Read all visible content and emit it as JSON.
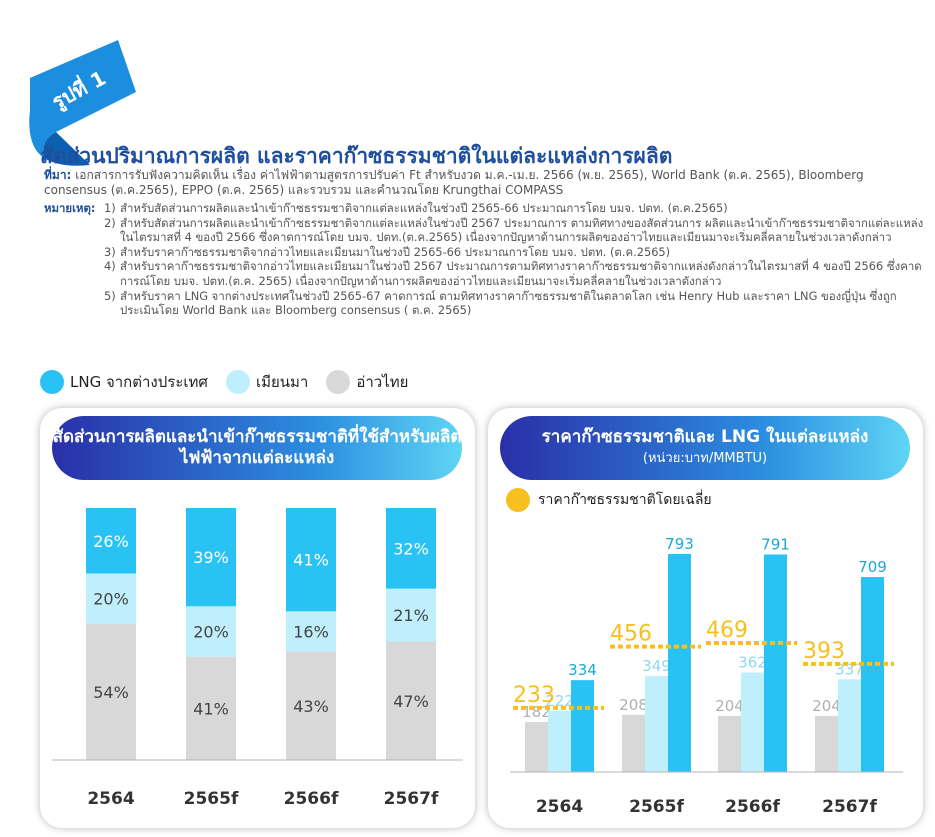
{
  "badge": {
    "label": "รูปที่ 1"
  },
  "title": "สัดส่วนปริมาณการผลิต และราคาก๊าซธรรมชาติในแต่ละแหล่งการผลิต",
  "source": {
    "label": "ที่มา:",
    "text": "เอกสารการรับฟังความคิดเห็น เรื่อง ค่าไฟฟ้าตามสูตรการปรับค่า Ft สำหรับงวด ม.ค.-เม.ย. 2566 (พ.ย. 2565), World Bank (ต.ค. 2565), Bloomberg consensus (ต.ค.2565), EPPO (ต.ค. 2565) และรวบรวม และคำนวณโดย Krungthai COMPASS"
  },
  "notes": {
    "label": "หมายเหตุ:",
    "items": [
      {
        "num": "1)",
        "text": "สำหรับสัดส่วนการผลิตและนำเข้าก๊าซธรรมชาติจากแต่ละแหล่งในช่วงปี 2565-66 ประมาณการโดย บมจ. ปตท. (ต.ค.2565)"
      },
      {
        "num": "2)",
        "text": "สำหรับสัดส่วนการผลิตและนำเข้าก๊าซธรรมชาติจากแต่ละแหล่งในช่วงปี 2567 ประมาณการ ตามทิศทางของสัดส่วนการ ผลิตและนำเข้าก๊าซธรรมชาติจากแต่ละแหล่งในไตรมาสที่ 4 ของปี 2566 ซึ่งคาดการณ์โดย บมจ. ปตท.(ต.ค.2565) เนื่องจากปัญหาด้านการผลิตของอ่าวไทยและเมียนมาจะเริ่มคลี่คลายในช่วงเวลาดังกล่าว"
      },
      {
        "num": "3)",
        "text": "สำหรับราคาก๊าซธรรมชาติจากอ่าวไทยและเมียนมาในช่วงปี 2565-66 ประมาณการโดย บมจ. ปตท. (ต.ค.2565)"
      },
      {
        "num": "4)",
        "text": "สำหรับราคาก๊าซธรรมชาติจากอ่าวไทยและเมียนมาในช่วงปี 2567 ประมาณการตามทิศทางราคาก๊าซธรรมชาติจากแหล่งดังกล่าวในไตรมาสที่ 4 ของปี 2566 ซึ่งคาดการณ์โดย บมจ. ปตท.(ต.ค. 2565) เนื่องจากปัญหาด้านการผลิตของอ่าวไทยและเมียนมาจะเริ่มคลี่คลายในช่วงเวลาดังกล่าว"
      },
      {
        "num": "5)",
        "text": "สำหรับราคา LNG จากต่างประเทศในช่วงปี 2565-67 คาดการณ์ ตามทิศทางราคาก๊าซธรรมชาติในตลาดโลก เช่น Henry Hub และราคา LNG ของญี่ปุ่น ซึ่งถูกประเมินโดย World Bank และ Bloomberg consensus ( ต.ค. 2565)"
      }
    ]
  },
  "legend": [
    {
      "label": "LNG จากต่างประเทศ",
      "color": "#29c2f4"
    },
    {
      "label": "เมียนมา",
      "color": "#bfeefc"
    },
    {
      "label": "อ่าวไทย",
      "color": "#d8d8d8"
    }
  ],
  "chart_data": [
    {
      "type": "bar",
      "stacked": true,
      "title": "สัดส่วนการผลิตและนำเข้าก๊าซธรรมชาติที่ใช้สำหรับผลิตไฟฟ้าจากแต่ละแหล่ง",
      "categories": [
        "2564",
        "2565f",
        "2566f",
        "2567f"
      ],
      "value_suffix": "%",
      "ylim": [
        0,
        100
      ],
      "series": [
        {
          "name": "อ่าวไทย",
          "color": "#d8d8d8",
          "values": [
            54,
            41,
            43,
            47
          ]
        },
        {
          "name": "เมียนมา",
          "color": "#bfeefc",
          "values": [
            20,
            20,
            16,
            21
          ]
        },
        {
          "name": "LNG จากต่างประเทศ",
          "color": "#29c2f4",
          "values": [
            26,
            39,
            41,
            32
          ]
        }
      ]
    },
    {
      "type": "bar",
      "title": "ราคาก๊าซธรรมชาติและ LNG ในแต่ละแหล่ง",
      "subtitle": "(หน่วย:บาท/MMBTU)",
      "categories": [
        "2564",
        "2565f",
        "2566f",
        "2567f"
      ],
      "ylim": [
        0,
        800
      ],
      "series": [
        {
          "name": "อ่าวไทย",
          "color": "#d8d8d8",
          "values": [
            182,
            208,
            204,
            204
          ]
        },
        {
          "name": "เมียนมา",
          "color": "#bfeefc",
          "values": [
            222,
            349,
            362,
            337
          ]
        },
        {
          "name": "LNG จากต่างประเทศ",
          "color": "#29c2f4",
          "values": [
            334,
            793,
            791,
            709
          ]
        }
      ],
      "average": {
        "name": "ราคาก๊าซธรรมชาติโดยเฉลี่ย",
        "color": "#f6c01f",
        "values": [
          233,
          456,
          469,
          393
        ]
      }
    }
  ]
}
